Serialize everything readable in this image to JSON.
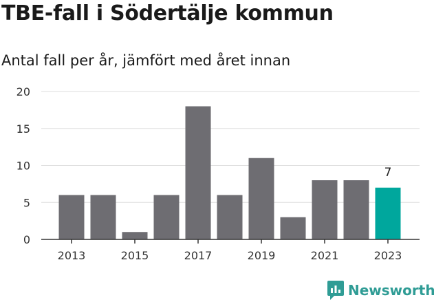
{
  "title": "TBE-fall i Södertälje kommun",
  "subtitle": "Antal fall per år, jämfört med året innan",
  "brand": "Newsworthy",
  "colors": {
    "bar": "#6e6d72",
    "highlight": "#00a79d",
    "brand": "#2f9c95"
  },
  "chart_data": {
    "type": "bar",
    "title": "",
    "xlabel": "",
    "ylabel": "",
    "categories": [
      "2013",
      "2014",
      "2015",
      "2016",
      "2017",
      "2018",
      "2019",
      "2020",
      "2021",
      "2022",
      "2023"
    ],
    "values": [
      6,
      6,
      1,
      6,
      18,
      6,
      11,
      3,
      8,
      8,
      7
    ],
    "ylim": [
      0,
      20
    ],
    "yticks": [
      0,
      5,
      10,
      15,
      20
    ],
    "xtick_labels": [
      "2013",
      "2015",
      "2017",
      "2019",
      "2021",
      "2023"
    ],
    "highlight_index": 10,
    "data_labels": [
      {
        "index": 10,
        "text": "7"
      }
    ],
    "grid": true
  }
}
